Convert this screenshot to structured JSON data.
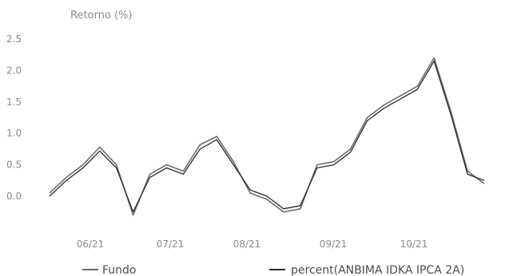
{
  "chart_data": {
    "type": "line",
    "ylabel": "Retorno (%)",
    "xlabel": "",
    "ylim": [
      -0.45,
      2.6
    ],
    "yticks": [
      "2.5",
      "2.0",
      "1.5",
      "1.0",
      "0.5",
      "0.0"
    ],
    "xticks": [
      "06/21",
      "07/21",
      "08/21",
      "09/21",
      "10/21"
    ],
    "legend_position": "bottom",
    "grid": false,
    "x": [
      "05/17",
      "05/24",
      "05/31",
      "06/07",
      "06/14",
      "06/21",
      "06/28",
      "07/05",
      "07/12",
      "07/19",
      "07/26",
      "08/02",
      "08/09",
      "08/16",
      "08/23",
      "08/30",
      "09/06",
      "09/13",
      "09/20",
      "09/27",
      "10/04",
      "10/11",
      "10/18",
      "10/25",
      "11/01",
      "11/08",
      "11/15"
    ],
    "series": [
      {
        "name": "Fundo",
        "color": "#6e6e6e",
        "values": [
          0.05,
          0.3,
          0.5,
          0.78,
          0.5,
          -0.3,
          0.35,
          0.5,
          0.4,
          0.82,
          0.95,
          0.55,
          0.05,
          -0.05,
          -0.25,
          -0.2,
          0.5,
          0.55,
          0.75,
          1.25,
          1.45,
          1.6,
          1.75,
          2.2,
          1.35,
          0.4,
          0.2
        ]
      },
      {
        "name": "percent(ANBIMA IDKA IPCA 2A)",
        "color": "#2b2b2b",
        "values": [
          0.0,
          0.25,
          0.45,
          0.72,
          0.45,
          -0.25,
          0.3,
          0.45,
          0.35,
          0.75,
          0.9,
          0.5,
          0.1,
          0.0,
          -0.2,
          -0.15,
          0.45,
          0.5,
          0.7,
          1.2,
          1.4,
          1.55,
          1.7,
          2.15,
          1.3,
          0.35,
          0.25
        ]
      }
    ]
  }
}
